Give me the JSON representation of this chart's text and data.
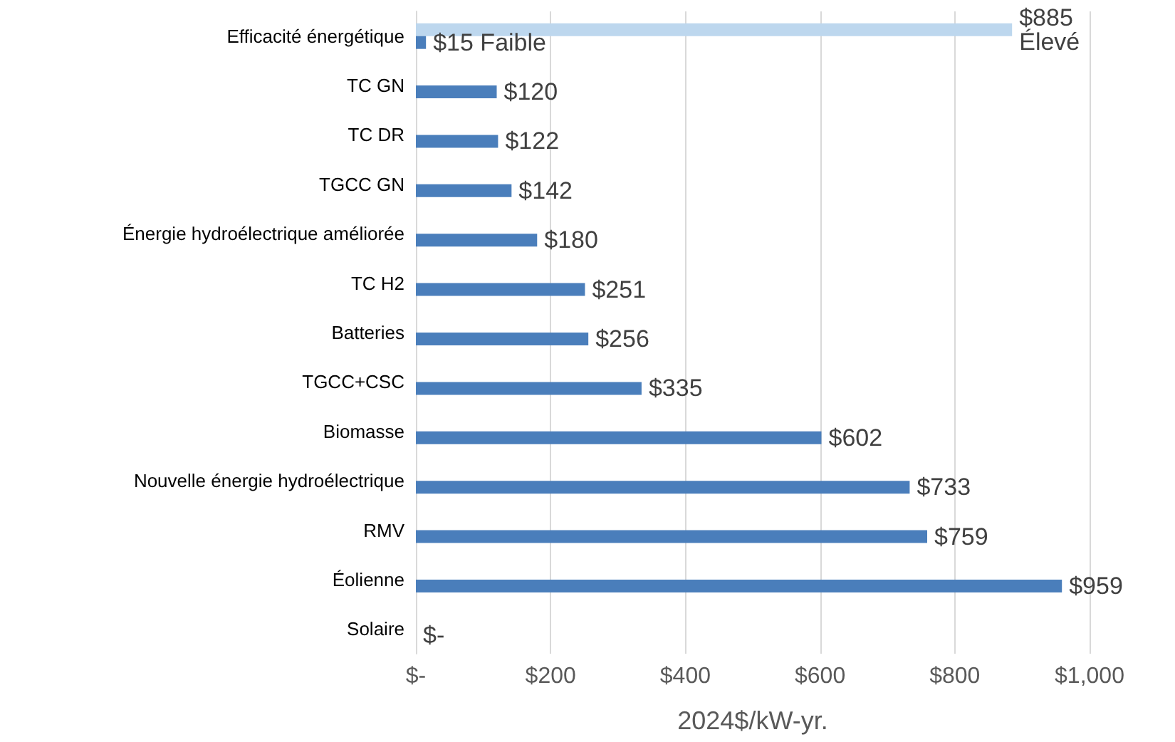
{
  "chart_data": {
    "type": "bar",
    "orientation": "horizontal",
    "xlabel": "2024$/kW-yr.",
    "categories": [
      "Efficacité énergétique",
      "TC GN",
      "TC DR",
      "TGCC GN",
      "Énergie hydroélectrique améliorée",
      "TC H2",
      "Batteries",
      "TGCC+CSC",
      "Biomasse",
      "Nouvelle énergie hydroélectrique",
      "RMV",
      "Éolienne",
      "Solaire"
    ],
    "series": [
      {
        "name": "Élevé",
        "color": "#bdd7ee",
        "values": [
          885,
          null,
          null,
          null,
          null,
          null,
          null,
          null,
          null,
          null,
          null,
          null,
          null
        ],
        "value_labels": [
          "$885",
          null,
          null,
          null,
          null,
          null,
          null,
          null,
          null,
          null,
          null,
          null,
          null
        ]
      },
      {
        "name": "Faible",
        "color": "#4a7ebb",
        "values": [
          15,
          120,
          122,
          142,
          180,
          251,
          256,
          335,
          602,
          733,
          759,
          959,
          0
        ],
        "value_labels": [
          "$15",
          "$120",
          "$122",
          "$142",
          "$180",
          "$251",
          "$256",
          "$335",
          "$602",
          "$733",
          "$759",
          "$959",
          "$-"
        ]
      }
    ],
    "xlim": [
      0,
      1000
    ],
    "xticks": [
      {
        "value": 0,
        "label": "$-"
      },
      {
        "value": 200,
        "label": "$200"
      },
      {
        "value": 400,
        "label": "$400"
      },
      {
        "value": 600,
        "label": "$600"
      },
      {
        "value": 800,
        "label": "$800"
      },
      {
        "value": 1000,
        "label": "$1,000"
      }
    ],
    "grid": "x",
    "legend": false
  }
}
